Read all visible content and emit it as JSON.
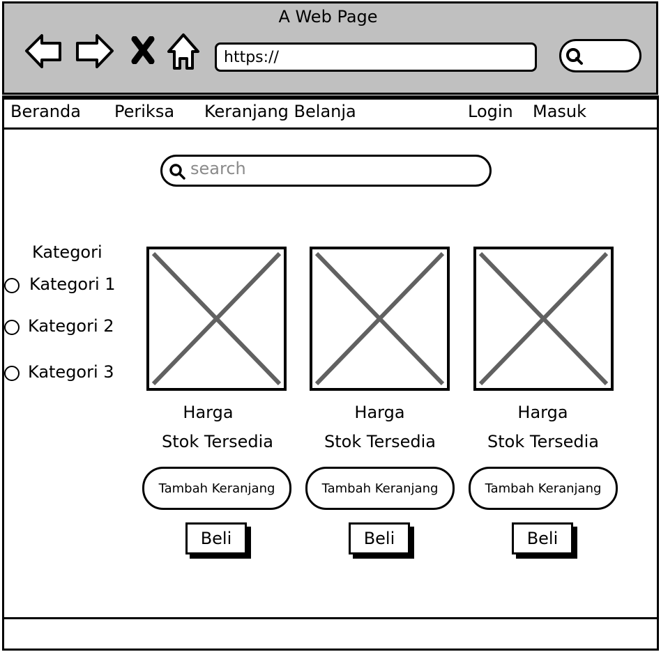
{
  "window": {
    "title": "A Web Page"
  },
  "address_bar": {
    "value": "https://"
  },
  "menu": {
    "items": [
      "Beranda",
      "Periksa",
      "Keranjang Belanja"
    ],
    "login": "Login",
    "register": "Masuk"
  },
  "search": {
    "placeholder": "search"
  },
  "category": {
    "title": "Kategori",
    "items": [
      "Kategori 1",
      "Kategori 2",
      "Kategori 3"
    ]
  },
  "products": [
    {
      "price_label": "Harga",
      "stock_label": "Stok Tersedia",
      "cart_button": "Tambah Keranjang",
      "buy_button": "Beli"
    },
    {
      "price_label": "Harga",
      "stock_label": "Stok Tersedia",
      "cart_button": "Tambah Keranjang",
      "buy_button": "Beli"
    },
    {
      "price_label": "Harga",
      "stock_label": "Stok Tersedia",
      "cart_button": "Tambah Keranjang",
      "buy_button": "Beli"
    }
  ],
  "colors": {
    "chrome": "#c0c0c0",
    "placeholder_x": "#616161",
    "placeholder_text": "#8a8a8a"
  }
}
